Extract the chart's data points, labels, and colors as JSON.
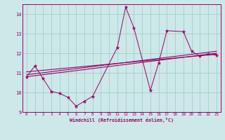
{
  "xlabel": "Windchill (Refroidissement éolien,°C)",
  "bg_color": "#cce8e8",
  "grid_color": "#aacccc",
  "line_color": "#990066",
  "xlim": [
    -0.5,
    23.5
  ],
  "ylim": [
    9,
    14.5
  ],
  "xticks": [
    0,
    1,
    2,
    3,
    4,
    5,
    6,
    7,
    8,
    9,
    10,
    11,
    12,
    13,
    14,
    15,
    16,
    17,
    18,
    19,
    20,
    21,
    22,
    23
  ],
  "yticks": [
    9,
    10,
    11,
    12,
    13,
    14
  ],
  "data_x": [
    0,
    1,
    2,
    3,
    4,
    5,
    6,
    7,
    8,
    11,
    12,
    13,
    15,
    16,
    17,
    19,
    20,
    21,
    22,
    23
  ],
  "data_y": [
    10.8,
    11.35,
    10.7,
    10.05,
    9.95,
    9.75,
    9.3,
    9.55,
    9.8,
    12.3,
    14.35,
    13.3,
    10.1,
    11.5,
    13.15,
    13.1,
    12.1,
    11.85,
    11.95,
    11.9
  ],
  "trend1_x": [
    0,
    23
  ],
  "trend1_y": [
    10.8,
    12.0
  ],
  "trend2_x": [
    0,
    23
  ],
  "trend2_y": [
    10.9,
    12.1
  ],
  "trend3_x": [
    0,
    23
  ],
  "trend3_y": [
    11.05,
    11.95
  ]
}
